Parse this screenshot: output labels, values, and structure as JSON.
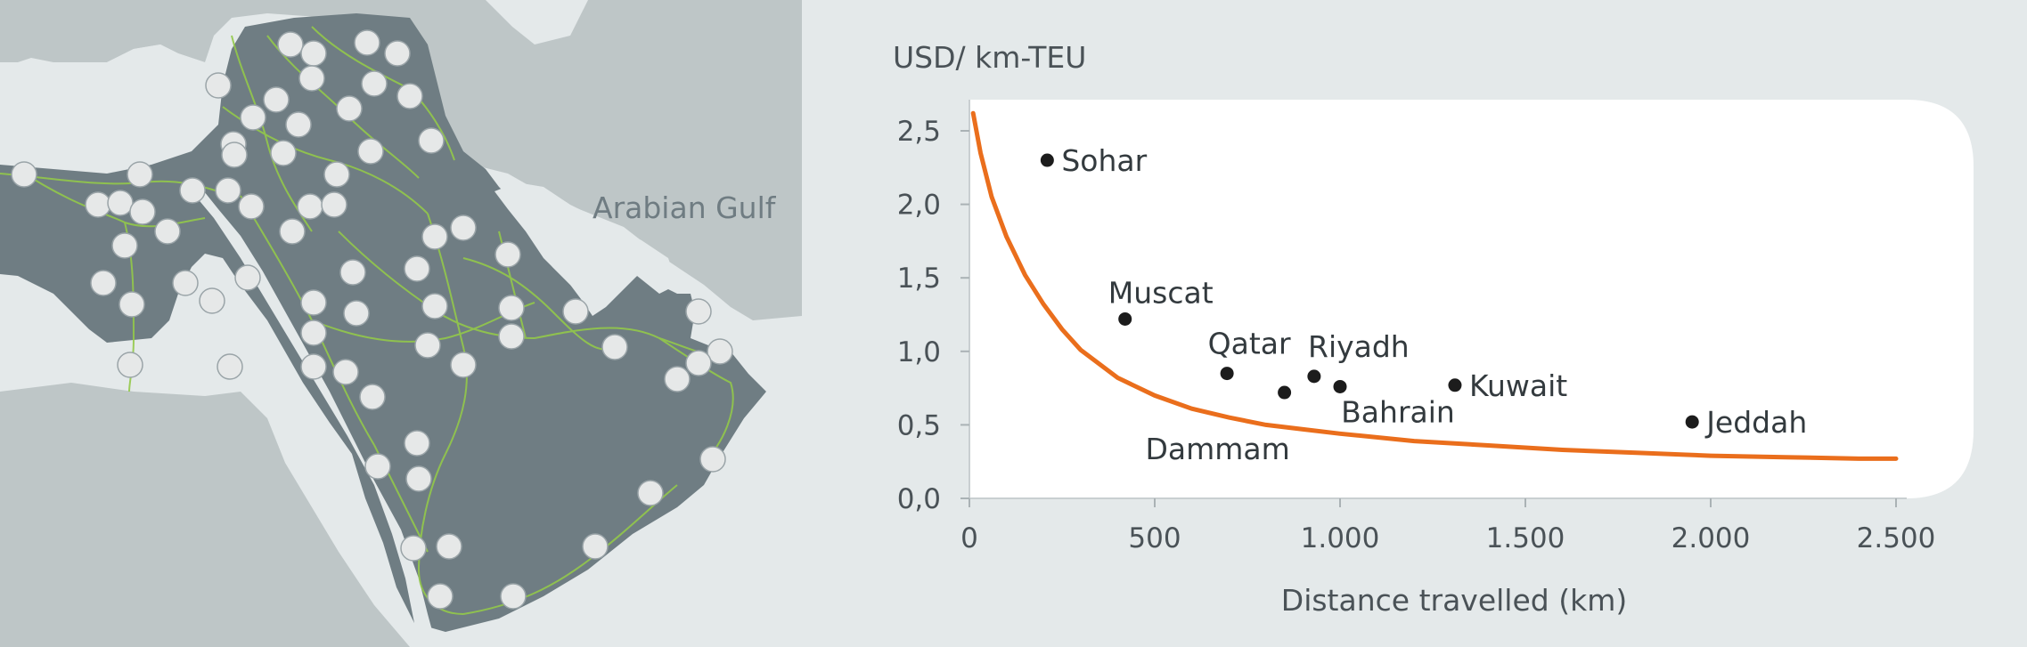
{
  "map": {
    "gulf_label": "Arabian Gulf",
    "colors": {
      "land": "#6f7d83",
      "neighbour": "#bec6c7",
      "sea": "#e4e9ea",
      "rail": "#93c94a",
      "node": "#e6e8e8"
    }
  },
  "chart_data": {
    "type": "scatter",
    "title": "",
    "ylabel": "USD/ km-TEU",
    "xlabel": "Distance travelled (km)",
    "xlim": [
      0,
      2500
    ],
    "ylim": [
      0,
      2.5
    ],
    "xticks": [
      0,
      500,
      1000,
      1500,
      2000,
      2500
    ],
    "xtick_labels": [
      "0",
      "500",
      "1.000",
      "1.500",
      "2.000",
      "2.500"
    ],
    "yticks": [
      0,
      0.5,
      1.0,
      1.5,
      2.0,
      2.5
    ],
    "ytick_labels": [
      "0,0",
      "0,5",
      "1,0",
      "1,5",
      "2,0",
      "2,5"
    ],
    "points": [
      {
        "label": "Sohar",
        "x": 210,
        "y": 2.3
      },
      {
        "label": "Muscat",
        "x": 420,
        "y": 1.22
      },
      {
        "label": "Qatar",
        "x": 695,
        "y": 0.85
      },
      {
        "label": "Dammam",
        "x": 850,
        "y": 0.72
      },
      {
        "label": "Riyadh",
        "x": 930,
        "y": 0.83
      },
      {
        "label": "Bahrain",
        "x": 1000,
        "y": 0.76
      },
      {
        "label": "Kuwait",
        "x": 1310,
        "y": 0.77
      },
      {
        "label": "Jeddah",
        "x": 1950,
        "y": 0.52
      }
    ],
    "curve": {
      "x": [
        10,
        30,
        60,
        100,
        150,
        200,
        250,
        300,
        400,
        500,
        600,
        700,
        800,
        900,
        1000,
        1200,
        1400,
        1600,
        1800,
        2000,
        2200,
        2400,
        2500
      ],
      "y": [
        2.62,
        2.35,
        2.05,
        1.78,
        1.52,
        1.32,
        1.15,
        1.01,
        0.82,
        0.7,
        0.61,
        0.55,
        0.5,
        0.47,
        0.44,
        0.39,
        0.36,
        0.33,
        0.31,
        0.29,
        0.28,
        0.27,
        0.27
      ]
    },
    "colors": {
      "curve": "#ea6e1c",
      "point": "#1c1c1c",
      "plot_bg": "#ffffff"
    }
  }
}
